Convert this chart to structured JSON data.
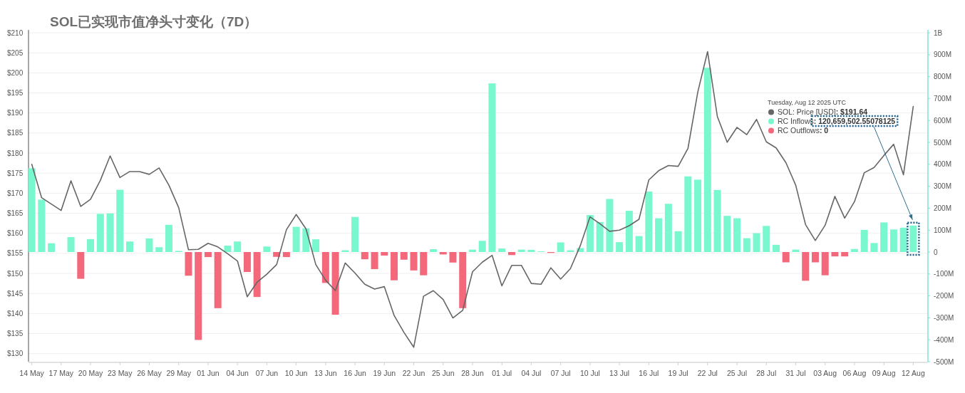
{
  "chart_data": {
    "type": "bar",
    "title": "SOL已实现市值净头寸变化（7D）",
    "x": [
      "2025-05-14",
      "2025-05-15",
      "2025-05-16",
      "2025-05-17",
      "2025-05-18",
      "2025-05-19",
      "2025-05-20",
      "2025-05-21",
      "2025-05-22",
      "2025-05-23",
      "2025-05-24",
      "2025-05-25",
      "2025-05-26",
      "2025-05-27",
      "2025-05-28",
      "2025-05-29",
      "2025-05-30",
      "2025-05-31",
      "2025-06-01",
      "2025-06-02",
      "2025-06-03",
      "2025-06-04",
      "2025-06-05",
      "2025-06-06",
      "2025-06-07",
      "2025-06-08",
      "2025-06-09",
      "2025-06-10",
      "2025-06-11",
      "2025-06-12",
      "2025-06-13",
      "2025-06-14",
      "2025-06-15",
      "2025-06-16",
      "2025-06-17",
      "2025-06-18",
      "2025-06-19",
      "2025-06-20",
      "2025-06-21",
      "2025-06-22",
      "2025-06-23",
      "2025-06-24",
      "2025-06-25",
      "2025-06-26",
      "2025-06-27",
      "2025-06-28",
      "2025-06-29",
      "2025-06-30",
      "2025-07-01",
      "2025-07-02",
      "2025-07-03",
      "2025-07-04",
      "2025-07-05",
      "2025-07-06",
      "2025-07-07",
      "2025-07-08",
      "2025-07-09",
      "2025-07-10",
      "2025-07-11",
      "2025-07-12",
      "2025-07-13",
      "2025-07-14",
      "2025-07-15",
      "2025-07-16",
      "2025-07-17",
      "2025-07-18",
      "2025-07-19",
      "2025-07-20",
      "2025-07-21",
      "2025-07-22",
      "2025-07-23",
      "2025-07-24",
      "2025-07-25",
      "2025-07-26",
      "2025-07-27",
      "2025-07-28",
      "2025-07-29",
      "2025-07-30",
      "2025-07-31",
      "2025-08-01",
      "2025-08-02",
      "2025-08-03",
      "2025-08-04",
      "2025-08-05",
      "2025-08-06",
      "2025-08-07",
      "2025-08-08",
      "2025-08-09",
      "2025-08-10",
      "2025-08-11",
      "2025-08-12"
    ],
    "series": [
      {
        "name": "SOL: Price [USD]",
        "type": "line",
        "color": "#666666",
        "values": [
          177.2,
          168.9,
          167.3,
          165.7,
          173.1,
          166.7,
          168.5,
          173.2,
          179.3,
          173.9,
          175.4,
          175.4,
          174.7,
          176.3,
          172.0,
          166.4,
          155.9,
          156.0,
          157.5,
          156.6,
          154.9,
          153.1,
          144.2,
          147.8,
          149.8,
          152.2,
          160.9,
          164.7,
          161.1,
          152.2,
          148.3,
          145.7,
          152.6,
          150.1,
          147.3,
          146.1,
          146.7,
          139.5,
          135.3,
          131.6,
          144.3,
          145.7,
          143.5,
          138.9,
          140.8,
          150.4,
          152.8,
          154.5,
          146.9,
          152.0,
          152.0,
          147.5,
          147.3,
          151.4,
          148.6,
          151.2,
          156.9,
          164.1,
          162.4,
          160.5,
          160.8,
          161.9,
          163.5,
          173.3,
          175.6,
          176.9,
          176.7,
          181.2,
          195.2,
          205.3,
          189.1,
          182.7,
          186.4,
          184.6,
          188.4,
          182.8,
          181.3,
          177.6,
          172.0,
          162.2,
          158.2,
          162.0,
          169.2,
          163.8,
          167.9,
          175.1,
          176.4,
          179.4,
          182.2,
          174.6,
          191.64
        ]
      },
      {
        "name": "RC Inflows",
        "axis": "y2",
        "color": "#79f7cf",
        "values": [
          382000000,
          239000000,
          40000000,
          null,
          68000000,
          null,
          59000000,
          174000000,
          176000000,
          284000000,
          48000000,
          null,
          62000000,
          22000000,
          124000000,
          5000000,
          null,
          null,
          null,
          null,
          29000000,
          48000000,
          null,
          null,
          25000000,
          null,
          null,
          115000000,
          108000000,
          58000000,
          null,
          null,
          8000000,
          160000000,
          null,
          null,
          null,
          null,
          null,
          null,
          null,
          13000000,
          null,
          null,
          null,
          11000000,
          51000000,
          769000000,
          16000000,
          null,
          11000000,
          10000000,
          3000000,
          null,
          44000000,
          8000000,
          18000000,
          169000000,
          137000000,
          242000000,
          45000000,
          188000000,
          73000000,
          276000000,
          154000000,
          220000000,
          95000000,
          345000000,
          330000000,
          840000000,
          283000000,
          165000000,
          154000000,
          63000000,
          86000000,
          119000000,
          33000000,
          null,
          11000000,
          null,
          null,
          null,
          null,
          null,
          14000000,
          101000000,
          41000000,
          135000000,
          103000000,
          111000000,
          120659502.55078125
        ]
      },
      {
        "name": "RC Outflows",
        "axis": "y2",
        "color": "#f4687b",
        "values": [
          null,
          null,
          null,
          null,
          null,
          -122000000,
          null,
          null,
          null,
          null,
          null,
          null,
          null,
          null,
          null,
          null,
          -108000000,
          -401000000,
          -23000000,
          -256000000,
          null,
          null,
          -91000000,
          -205000000,
          null,
          -22000000,
          -23000000,
          null,
          null,
          null,
          -141000000,
          -286000000,
          null,
          null,
          -33000000,
          -78000000,
          -16000000,
          -129000000,
          -35000000,
          -84000000,
          -106000000,
          null,
          -11000000,
          -48000000,
          -256000000,
          null,
          null,
          null,
          null,
          -14000000,
          null,
          null,
          null,
          -4000000,
          null,
          null,
          null,
          null,
          null,
          null,
          null,
          null,
          null,
          null,
          null,
          null,
          null,
          null,
          null,
          null,
          null,
          null,
          null,
          null,
          null,
          null,
          null,
          -47000000,
          null,
          -131000000,
          -47000000,
          -106000000,
          -20000000,
          -20000000,
          null,
          null,
          null,
          null,
          null,
          null,
          0
        ]
      }
    ],
    "xlim": [
      "2025-05-13T16:00",
      "2025-08-13T12:00"
    ],
    "xticks": [
      {
        "value": "2025-05-14",
        "label": "14 May"
      },
      {
        "value": "2025-05-17",
        "label": "17 May"
      },
      {
        "value": "2025-05-20",
        "label": "20 May"
      },
      {
        "value": "2025-05-23",
        "label": "23 May"
      },
      {
        "value": "2025-05-26",
        "label": "26 May"
      },
      {
        "value": "2025-05-29",
        "label": "29 May"
      },
      {
        "value": "2025-06-01",
        "label": "01 Jun"
      },
      {
        "value": "2025-06-04",
        "label": "04 Jun"
      },
      {
        "value": "2025-06-07",
        "label": "07 Jun"
      },
      {
        "value": "2025-06-10",
        "label": "10 Jun"
      },
      {
        "value": "2025-06-13",
        "label": "13 Jun"
      },
      {
        "value": "2025-06-16",
        "label": "16 Jun"
      },
      {
        "value": "2025-06-19",
        "label": "19 Jun"
      },
      {
        "value": "2025-06-22",
        "label": "22 Jun"
      },
      {
        "value": "2025-06-25",
        "label": "25 Jun"
      },
      {
        "value": "2025-06-28",
        "label": "28 Jun"
      },
      {
        "value": "2025-07-01",
        "label": "01 Jul"
      },
      {
        "value": "2025-07-04",
        "label": "04 Jul"
      },
      {
        "value": "2025-07-07",
        "label": "07 Jul"
      },
      {
        "value": "2025-07-10",
        "label": "10 Jul"
      },
      {
        "value": "2025-07-13",
        "label": "13 Jul"
      },
      {
        "value": "2025-07-16",
        "label": "16 Jul"
      },
      {
        "value": "2025-07-19",
        "label": "19 Jul"
      },
      {
        "value": "2025-07-22",
        "label": "22 Jul"
      },
      {
        "value": "2025-07-25",
        "label": "25 Jul"
      },
      {
        "value": "2025-07-28",
        "label": "28 Jul"
      },
      {
        "value": "2025-07-31",
        "label": "31 Jul"
      },
      {
        "value": "2025-08-03",
        "label": "03 Aug"
      },
      {
        "value": "2025-08-06",
        "label": "06 Aug"
      },
      {
        "value": "2025-08-09",
        "label": "09 Aug"
      },
      {
        "value": "2025-08-12",
        "label": "12 Aug"
      }
    ],
    "ylim": [
      128,
      210
    ],
    "yticks": [
      {
        "value": 130,
        "label": "$130"
      },
      {
        "value": 135,
        "label": "$135"
      },
      {
        "value": 140,
        "label": "$140"
      },
      {
        "value": 145,
        "label": "$145"
      },
      {
        "value": 150,
        "label": "$150"
      },
      {
        "value": 155,
        "label": "$155"
      },
      {
        "value": 160,
        "label": "$160"
      },
      {
        "value": 165,
        "label": "$165"
      },
      {
        "value": 170,
        "label": "$170"
      },
      {
        "value": 175,
        "label": "$175"
      },
      {
        "value": 180,
        "label": "$180"
      },
      {
        "value": 185,
        "label": "$185"
      },
      {
        "value": 190,
        "label": "$190"
      },
      {
        "value": 195,
        "label": "$195"
      },
      {
        "value": 200,
        "label": "$200"
      },
      {
        "value": 205,
        "label": "$205"
      },
      {
        "value": 210,
        "label": "$210"
      }
    ],
    "y2lim": [
      -500000000,
      1000000000
    ],
    "y2ticks": [
      {
        "value": -500000000,
        "label": "-500M"
      },
      {
        "value": -400000000,
        "label": "-400M"
      },
      {
        "value": -300000000,
        "label": "-300M"
      },
      {
        "value": -200000000,
        "label": "-200M"
      },
      {
        "value": -100000000,
        "label": "-100M"
      },
      0,
      {
        "value": 100000000,
        "label": "100M"
      },
      {
        "value": 200000000,
        "label": "200M"
      },
      {
        "value": 300000000,
        "label": "300M"
      },
      {
        "value": 400000000,
        "label": "400M"
      },
      {
        "value": 500000000,
        "label": "500M"
      },
      {
        "value": 600000000,
        "label": "600M"
      },
      {
        "value": 700000000,
        "label": "700M"
      },
      {
        "value": 800000000,
        "label": "800M"
      },
      {
        "value": 900000000,
        "label": "900M"
      },
      {
        "value": 1000000000,
        "label": "1B"
      }
    ],
    "grid": "y",
    "legend": "top right",
    "marker": "none",
    "annotations": [
      "Tuesday, Aug 12 2025 UTC",
      ": $191.64",
      ": 120,659,502.55078125",
      ": 0"
    ]
  }
}
